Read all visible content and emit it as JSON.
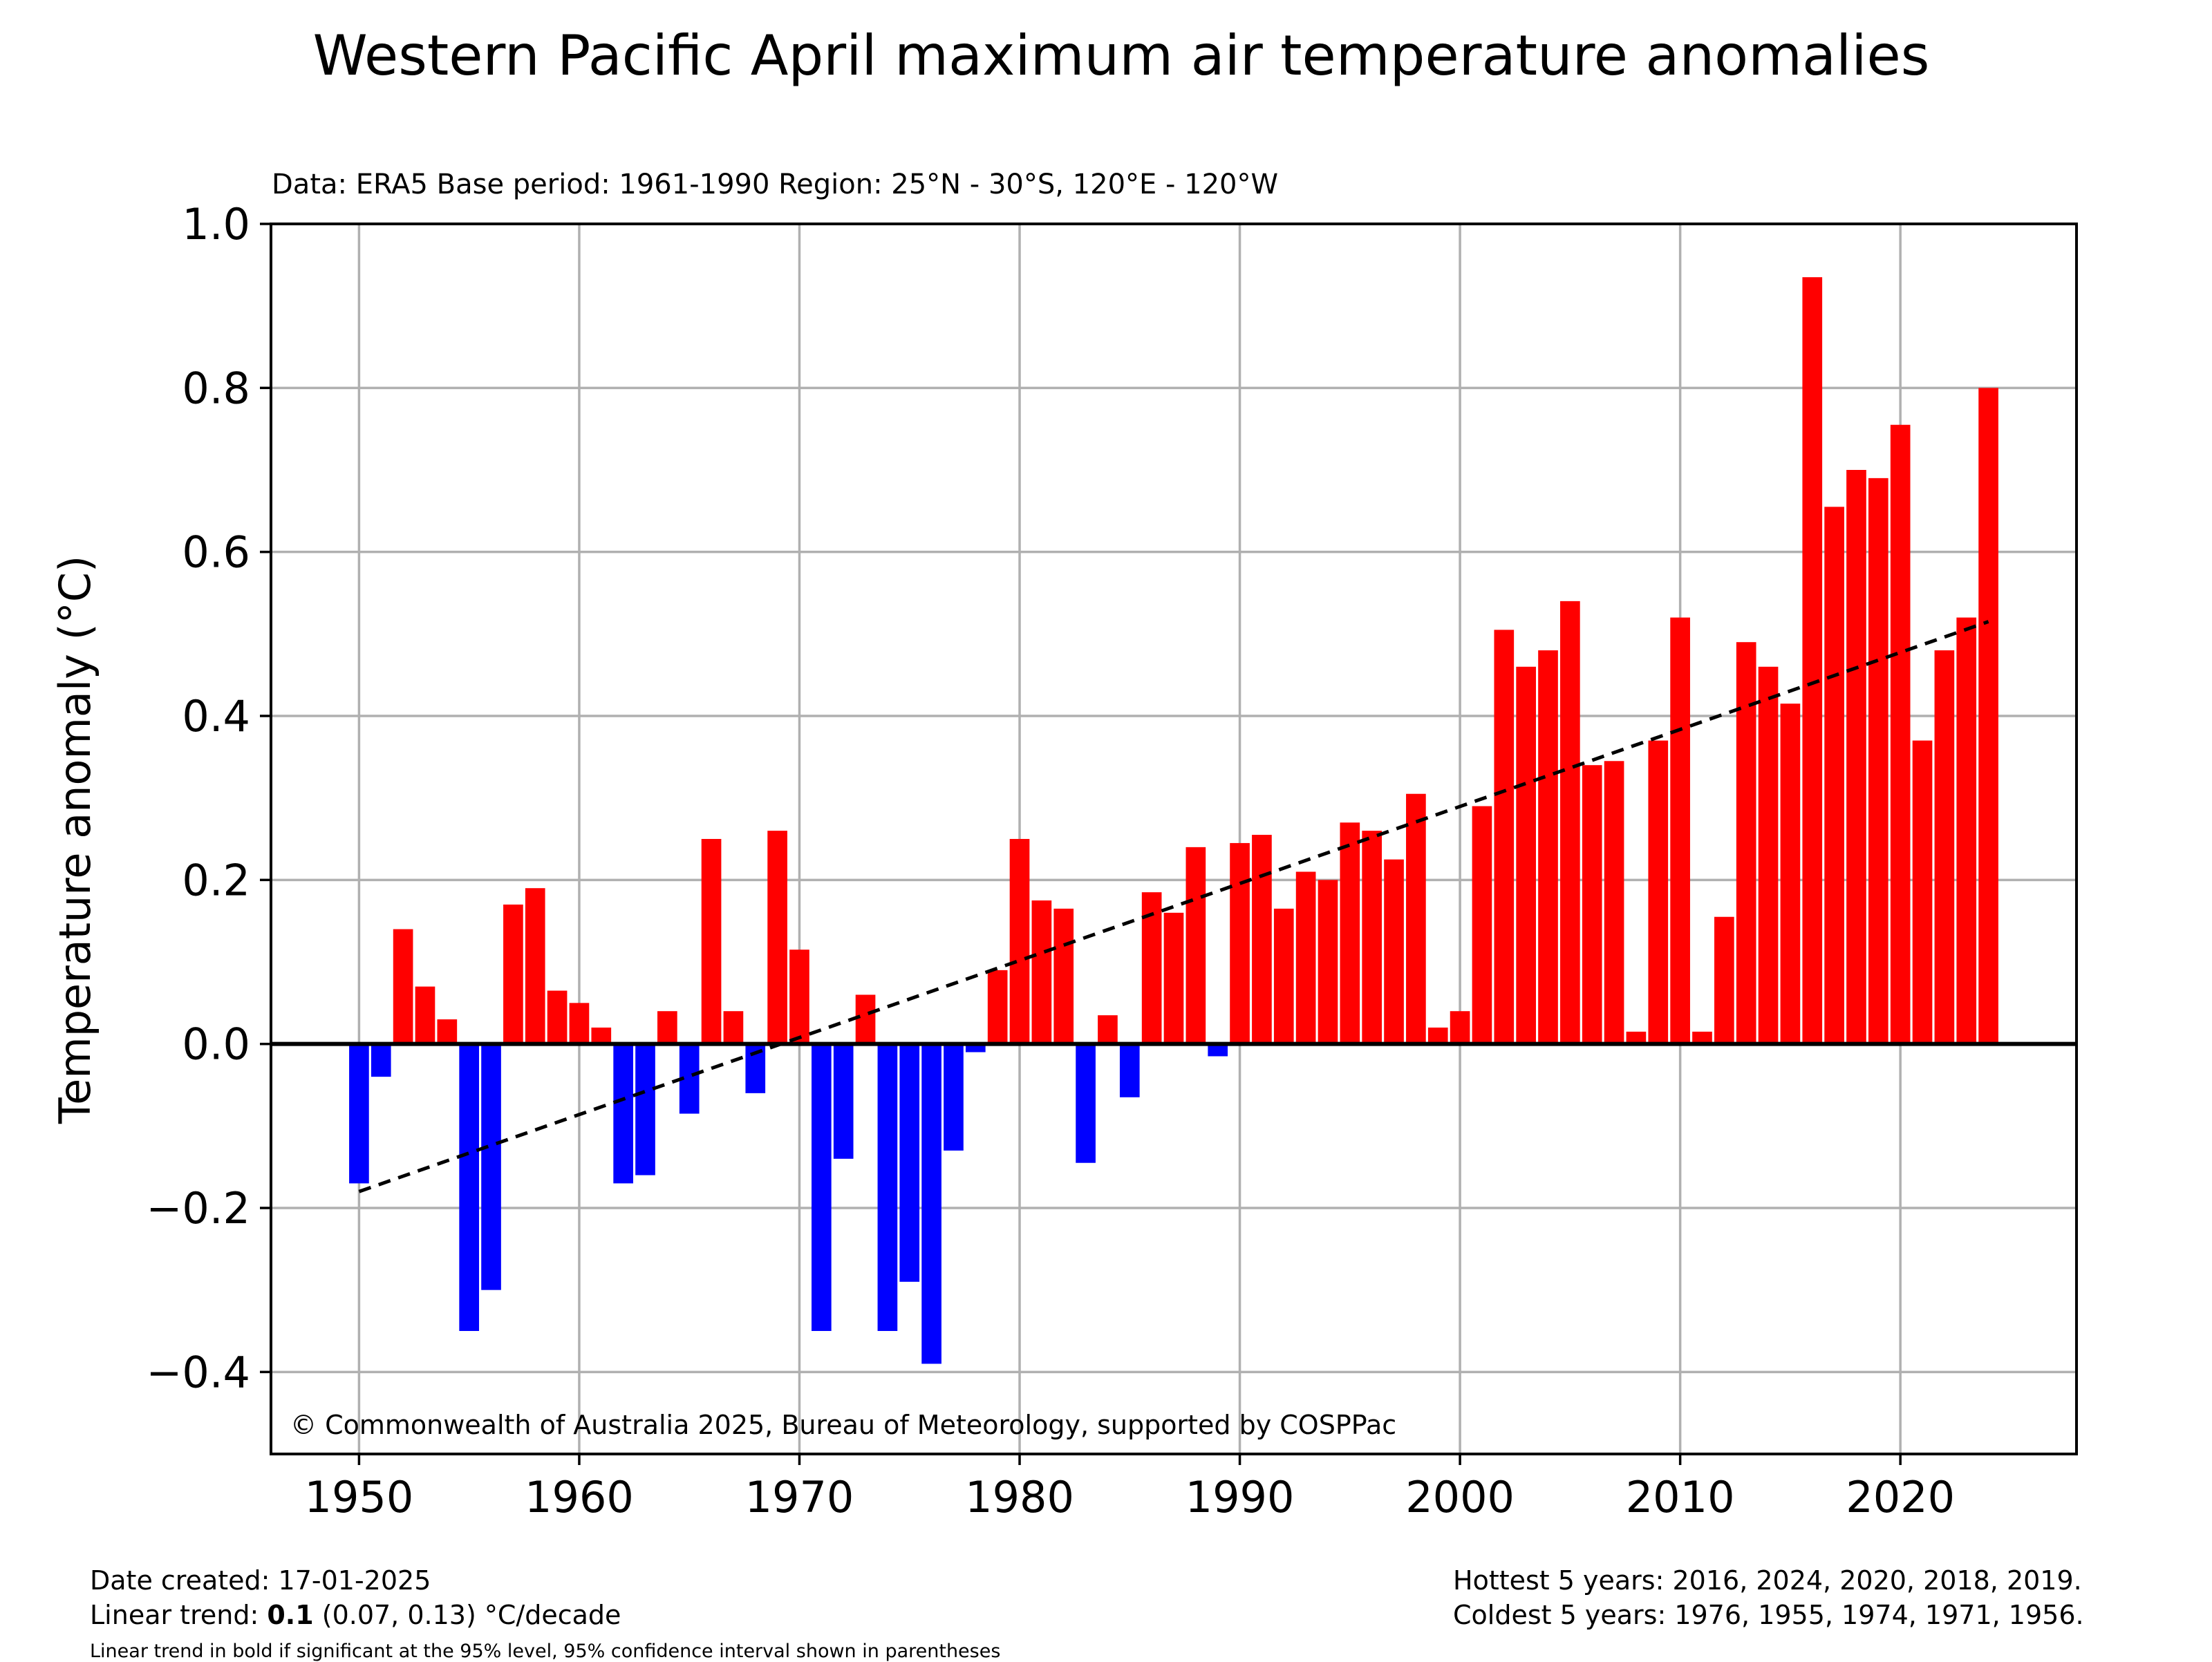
{
  "chart_data": {
    "type": "bar",
    "title": "Western Pacific April maximum air temperature anomalies",
    "subtitle": "Data: ERA5  Base period: 1961-1990  Region: 25°N - 30°S, 120°E - 120°W",
    "ylabel": "Temperature anomaly (°C)",
    "xlabel": "",
    "xlim": [
      1946,
      2028
    ],
    "ylim": [
      -0.5,
      1.0
    ],
    "xticks": [
      1950,
      1960,
      1970,
      1980,
      1990,
      2000,
      2010,
      2020
    ],
    "yticks": [
      -0.4,
      -0.2,
      0.0,
      0.2,
      0.4,
      0.6,
      0.8,
      1.0
    ],
    "ytick_labels": [
      "−0.4",
      "−0.2",
      "0.0",
      "0.2",
      "0.4",
      "0.6",
      "0.8",
      "1.0"
    ],
    "grid": true,
    "positive_color": "#ff0000",
    "negative_color": "#0000ff",
    "years": [
      1950,
      1951,
      1952,
      1953,
      1954,
      1955,
      1956,
      1957,
      1958,
      1959,
      1960,
      1961,
      1962,
      1963,
      1964,
      1965,
      1966,
      1967,
      1968,
      1969,
      1970,
      1971,
      1972,
      1973,
      1974,
      1975,
      1976,
      1977,
      1978,
      1979,
      1980,
      1981,
      1982,
      1983,
      1984,
      1985,
      1986,
      1987,
      1988,
      1989,
      1990,
      1991,
      1992,
      1993,
      1994,
      1995,
      1996,
      1997,
      1998,
      1999,
      2000,
      2001,
      2002,
      2003,
      2004,
      2005,
      2006,
      2007,
      2008,
      2009,
      2010,
      2011,
      2012,
      2013,
      2014,
      2015,
      2016,
      2017,
      2018,
      2019,
      2020,
      2021,
      2022,
      2023,
      2024
    ],
    "values": [
      -0.17,
      -0.04,
      0.14,
      0.07,
      0.03,
      -0.35,
      -0.3,
      0.17,
      0.19,
      0.065,
      0.05,
      0.02,
      -0.17,
      -0.16,
      0.04,
      -0.085,
      0.25,
      0.04,
      -0.06,
      0.26,
      0.115,
      -0.35,
      -0.14,
      0.06,
      -0.35,
      -0.29,
      -0.39,
      -0.13,
      -0.01,
      0.09,
      0.25,
      0.175,
      0.165,
      -0.145,
      0.035,
      -0.065,
      0.185,
      0.16,
      0.24,
      -0.015,
      0.245,
      0.255,
      0.165,
      0.21,
      0.2,
      0.27,
      0.26,
      0.225,
      0.305,
      0.02,
      0.04,
      0.29,
      0.505,
      0.46,
      0.48,
      0.54,
      0.34,
      0.345,
      0.015,
      0.37,
      0.52,
      0.015,
      0.155,
      0.49,
      0.46,
      0.415,
      0.935,
      0.655,
      0.7,
      0.69,
      0.755,
      0.37,
      0.48,
      0.52,
      0.8
    ],
    "trend_line": {
      "x": [
        1950,
        2024
      ],
      "y": [
        -0.18,
        0.515
      ],
      "style": "dashed"
    },
    "annotation": "© Commonwealth of Australia 2025, Bureau of Meteorology, supported by COSPPac"
  },
  "footer": {
    "date_created": "Date created: 17-01-2025",
    "trend_prefix": "Linear trend: ",
    "trend_value": "0.1",
    "trend_suffix": " (0.07, 0.13) °C/decade",
    "note": "Linear trend in bold if significant at the 95% level, 95% confidence interval shown in parentheses",
    "hottest": "Hottest 5 years: 2016, 2024, 2020, 2018, 2019.",
    "coldest": "Coldest 5 years: 1976, 1955, 1974, 1971, 1956."
  }
}
